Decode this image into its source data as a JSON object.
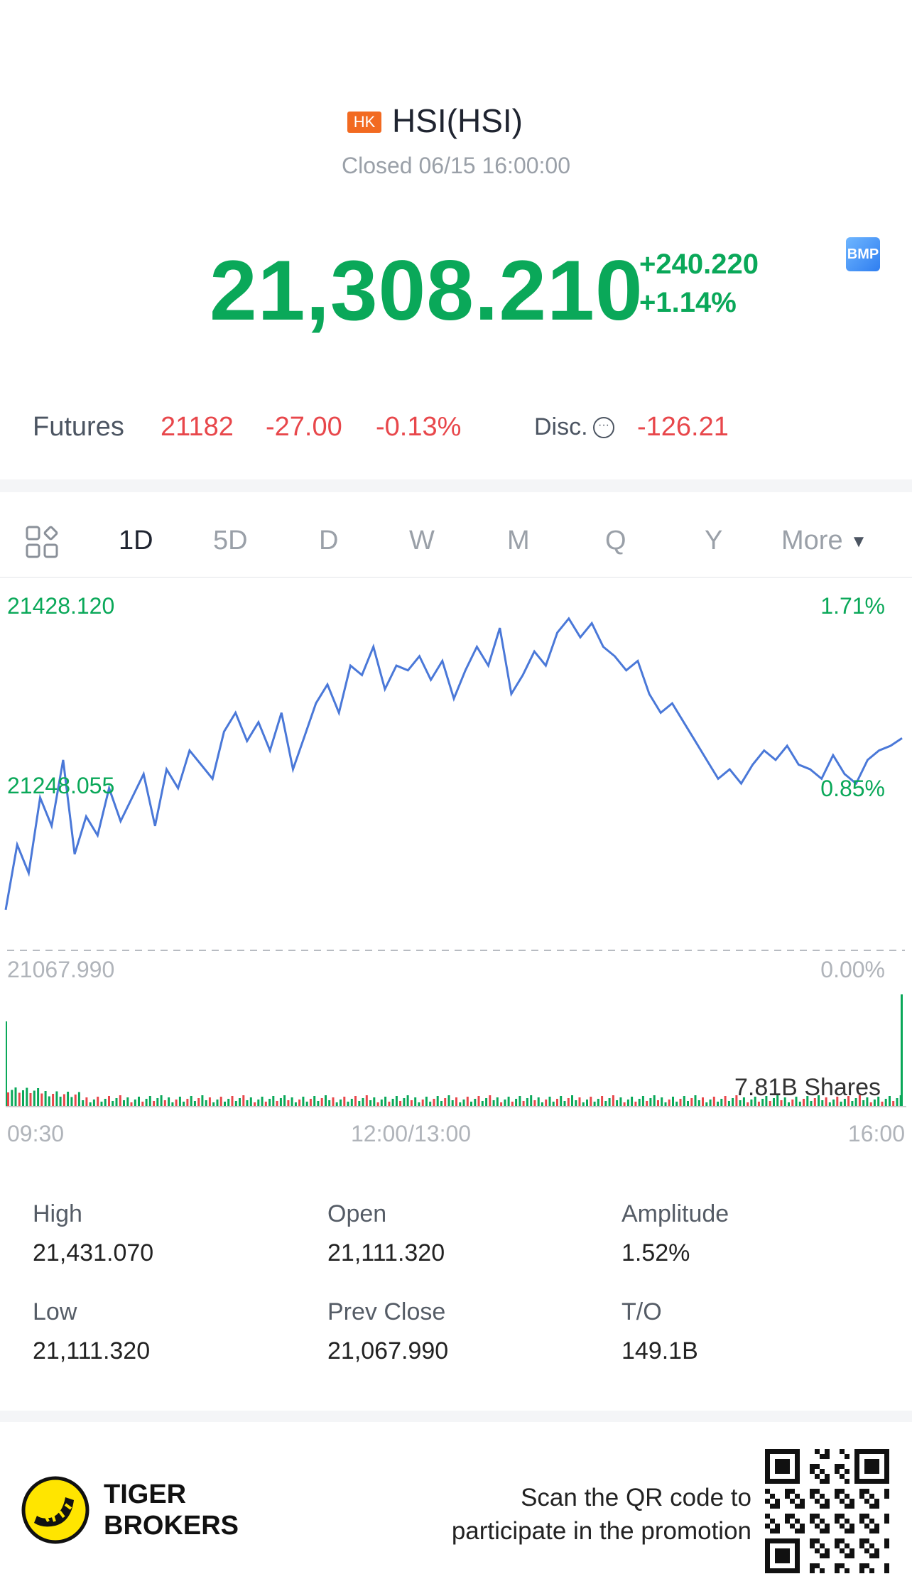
{
  "header": {
    "market_badge": "HK",
    "title": "HSI(HSI)",
    "status": "Closed 06/15 16:00:00",
    "price": "21,308.210",
    "change": "+240.220",
    "change_pct": "+1.14%",
    "bmp_badge": "BMP",
    "colors": {
      "up": "#0aa859",
      "down": "#e8474b",
      "badge": "#f26a21"
    }
  },
  "futures": {
    "label": "Futures",
    "value": "21182",
    "change": "-27.00",
    "change_pct": "-0.13%",
    "disc_label": "Disc.",
    "disc_value": "-126.21"
  },
  "tabs": {
    "items": [
      "1D",
      "5D",
      "D",
      "W",
      "M",
      "Q",
      "Y",
      "More"
    ],
    "active": "1D"
  },
  "chart_data": {
    "type": "line",
    "y_labels_left": [
      "21428.120",
      "21248.055",
      "21067.990"
    ],
    "y_labels_right": [
      "1.71%",
      "0.85%",
      "0.00%"
    ],
    "x_labels": [
      "09:30",
      "12:00/13:00",
      "16:00"
    ],
    "ylim": [
      21067.99,
      21428.12
    ],
    "baseline": 21067.99,
    "series": [
      {
        "values": [
          21111,
          21180,
          21150,
          21230,
          21200,
          21270,
          21170,
          21210,
          21190,
          21240,
          21205,
          21230,
          21255,
          21200,
          21260,
          21240,
          21280,
          21265,
          21250,
          21300,
          21320,
          21290,
          21310,
          21280,
          21320,
          21260,
          21295,
          21330,
          21350,
          21320,
          21370,
          21360,
          21390,
          21345,
          21370,
          21365,
          21380,
          21355,
          21375,
          21335,
          21365,
          21390,
          21370,
          21410,
          21340,
          21360,
          21385,
          21370,
          21405,
          21420,
          21400,
          21415,
          21390,
          21380,
          21365,
          21375,
          21340,
          21320,
          21330,
          21310,
          21290,
          21270,
          21250,
          21260,
          21245,
          21265,
          21280,
          21270,
          21285,
          21265,
          21260,
          21250,
          21275,
          21255,
          21245,
          21270,
          21280,
          21285,
          21293
        ]
      }
    ],
    "volume": {
      "label": "7.81B Shares"
    }
  },
  "stats": {
    "high_label": "High",
    "high": "21,431.070",
    "open_label": "Open",
    "open": "21,111.320",
    "amp_label": "Amplitude",
    "amp": "1.52%",
    "low_label": "Low",
    "low": "21,111.320",
    "prev_label": "Prev Close",
    "prev": "21,067.990",
    "to_label": "T/O",
    "to": "149.1B"
  },
  "footer": {
    "brand_line1": "TIGER",
    "brand_line2": "BROKERS",
    "promo_line1": "Scan the QR code to",
    "promo_line2": "participate in the promotion"
  }
}
